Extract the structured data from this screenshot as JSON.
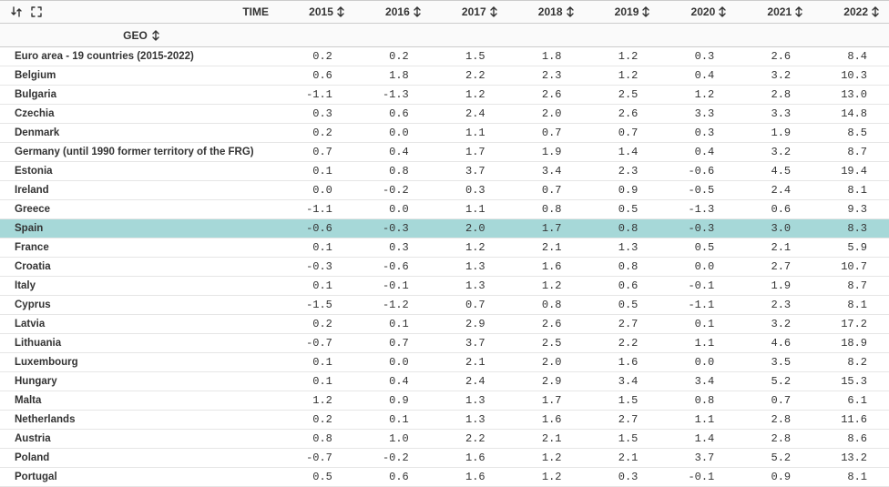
{
  "header": {
    "time_label": "TIME",
    "geo_label": "GEO",
    "years": [
      "2015",
      "2016",
      "2017",
      "2018",
      "2019",
      "2020",
      "2021",
      "2022"
    ]
  },
  "highlight_row_index": 9,
  "highlight_color": "#a6d8d8",
  "border_color": "#e6e6e6",
  "header_bg": "#fafafa",
  "rows": [
    {
      "label": "Euro area - 19 countries (2015-2022)",
      "values": [
        "0.2",
        "0.2",
        "1.5",
        "1.8",
        "1.2",
        "0.3",
        "2.6",
        "8.4"
      ]
    },
    {
      "label": "Belgium",
      "values": [
        "0.6",
        "1.8",
        "2.2",
        "2.3",
        "1.2",
        "0.4",
        "3.2",
        "10.3"
      ]
    },
    {
      "label": "Bulgaria",
      "values": [
        "-1.1",
        "-1.3",
        "1.2",
        "2.6",
        "2.5",
        "1.2",
        "2.8",
        "13.0"
      ]
    },
    {
      "label": "Czechia",
      "values": [
        "0.3",
        "0.6",
        "2.4",
        "2.0",
        "2.6",
        "3.3",
        "3.3",
        "14.8"
      ]
    },
    {
      "label": "Denmark",
      "values": [
        "0.2",
        "0.0",
        "1.1",
        "0.7",
        "0.7",
        "0.3",
        "1.9",
        "8.5"
      ]
    },
    {
      "label": "Germany (until 1990 former territory of the FRG)",
      "values": [
        "0.7",
        "0.4",
        "1.7",
        "1.9",
        "1.4",
        "0.4",
        "3.2",
        "8.7"
      ]
    },
    {
      "label": "Estonia",
      "values": [
        "0.1",
        "0.8",
        "3.7",
        "3.4",
        "2.3",
        "-0.6",
        "4.5",
        "19.4"
      ]
    },
    {
      "label": "Ireland",
      "values": [
        "0.0",
        "-0.2",
        "0.3",
        "0.7",
        "0.9",
        "-0.5",
        "2.4",
        "8.1"
      ]
    },
    {
      "label": "Greece",
      "values": [
        "-1.1",
        "0.0",
        "1.1",
        "0.8",
        "0.5",
        "-1.3",
        "0.6",
        "9.3"
      ]
    },
    {
      "label": "Spain",
      "values": [
        "-0.6",
        "-0.3",
        "2.0",
        "1.7",
        "0.8",
        "-0.3",
        "3.0",
        "8.3"
      ]
    },
    {
      "label": "France",
      "values": [
        "0.1",
        "0.3",
        "1.2",
        "2.1",
        "1.3",
        "0.5",
        "2.1",
        "5.9"
      ]
    },
    {
      "label": "Croatia",
      "values": [
        "-0.3",
        "-0.6",
        "1.3",
        "1.6",
        "0.8",
        "0.0",
        "2.7",
        "10.7"
      ]
    },
    {
      "label": "Italy",
      "values": [
        "0.1",
        "-0.1",
        "1.3",
        "1.2",
        "0.6",
        "-0.1",
        "1.9",
        "8.7"
      ]
    },
    {
      "label": "Cyprus",
      "values": [
        "-1.5",
        "-1.2",
        "0.7",
        "0.8",
        "0.5",
        "-1.1",
        "2.3",
        "8.1"
      ]
    },
    {
      "label": "Latvia",
      "values": [
        "0.2",
        "0.1",
        "2.9",
        "2.6",
        "2.7",
        "0.1",
        "3.2",
        "17.2"
      ]
    },
    {
      "label": "Lithuania",
      "values": [
        "-0.7",
        "0.7",
        "3.7",
        "2.5",
        "2.2",
        "1.1",
        "4.6",
        "18.9"
      ]
    },
    {
      "label": "Luxembourg",
      "values": [
        "0.1",
        "0.0",
        "2.1",
        "2.0",
        "1.6",
        "0.0",
        "3.5",
        "8.2"
      ]
    },
    {
      "label": "Hungary",
      "values": [
        "0.1",
        "0.4",
        "2.4",
        "2.9",
        "3.4",
        "3.4",
        "5.2",
        "15.3"
      ]
    },
    {
      "label": "Malta",
      "values": [
        "1.2",
        "0.9",
        "1.3",
        "1.7",
        "1.5",
        "0.8",
        "0.7",
        "6.1"
      ]
    },
    {
      "label": "Netherlands",
      "values": [
        "0.2",
        "0.1",
        "1.3",
        "1.6",
        "2.7",
        "1.1",
        "2.8",
        "11.6"
      ]
    },
    {
      "label": "Austria",
      "values": [
        "0.8",
        "1.0",
        "2.2",
        "2.1",
        "1.5",
        "1.4",
        "2.8",
        "8.6"
      ]
    },
    {
      "label": "Poland",
      "values": [
        "-0.7",
        "-0.2",
        "1.6",
        "1.2",
        "2.1",
        "3.7",
        "5.2",
        "13.2"
      ]
    },
    {
      "label": "Portugal",
      "values": [
        "0.5",
        "0.6",
        "1.6",
        "1.2",
        "0.3",
        "-0.1",
        "0.9",
        "8.1"
      ]
    }
  ]
}
